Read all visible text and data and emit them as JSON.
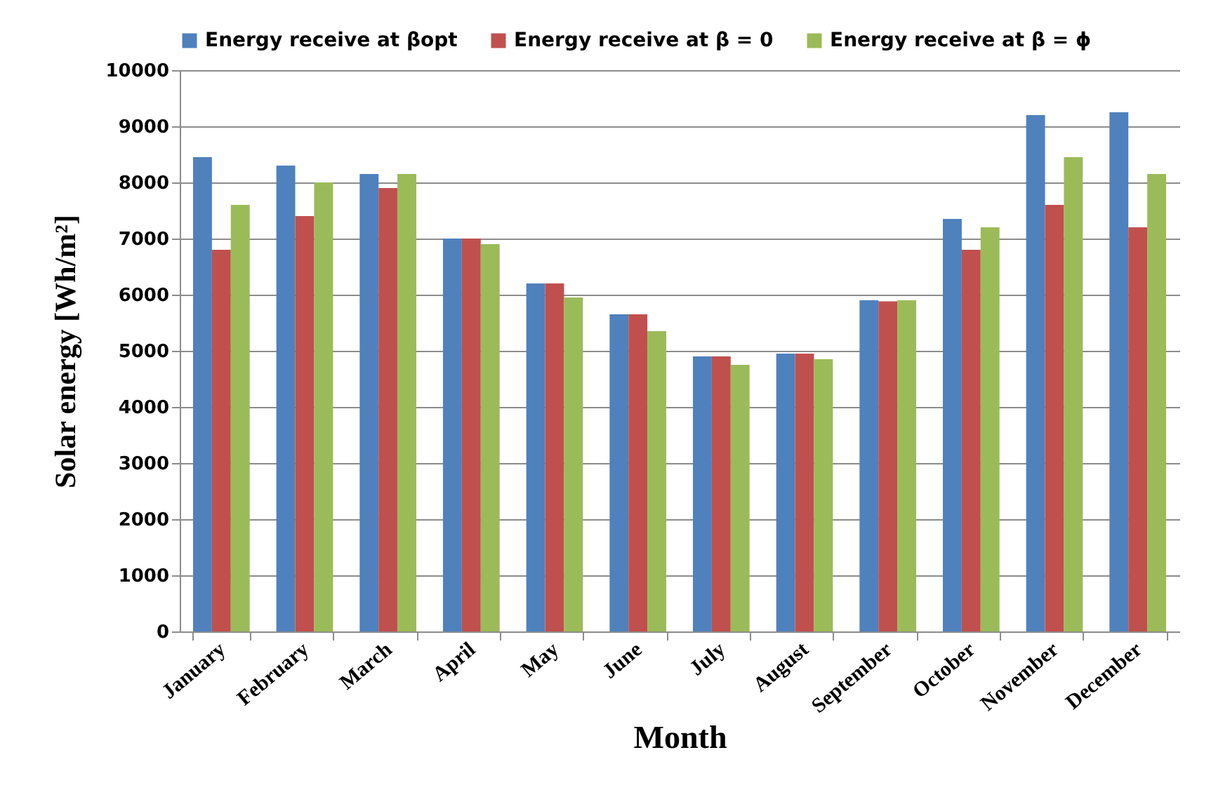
{
  "chart_data": {
    "type": "bar",
    "xlabel": "Month",
    "ylabel": "Solar energy [Wh/m²]",
    "categories": [
      "January",
      "February",
      "March",
      "April",
      "May",
      "June",
      "July",
      "August",
      "September",
      "October",
      "November",
      "December"
    ],
    "series": [
      {
        "name": "Energy receive at βopt",
        "color": "#4f81bd",
        "values": [
          8450,
          8300,
          8150,
          7000,
          6200,
          5650,
          4900,
          4950,
          5900,
          7350,
          9200,
          9250
        ]
      },
      {
        "name": "Energy receive at β = 0",
        "color": "#c0504d",
        "values": [
          6800,
          7400,
          7900,
          7000,
          6200,
          5650,
          4900,
          4950,
          5880,
          6800,
          7600,
          7200
        ]
      },
      {
        "name": "Energy receive at β = ϕ",
        "color": "#9bbb59",
        "values": [
          7600,
          8000,
          8150,
          6900,
          5950,
          5350,
          4750,
          4850,
          5900,
          7200,
          8450,
          8150
        ]
      }
    ],
    "ylim": [
      0,
      10000
    ],
    "yticks": [
      0,
      1000,
      2000,
      3000,
      4000,
      5000,
      6000,
      7000,
      8000,
      9000,
      10000
    ],
    "grid": "y",
    "legend": "top"
  }
}
